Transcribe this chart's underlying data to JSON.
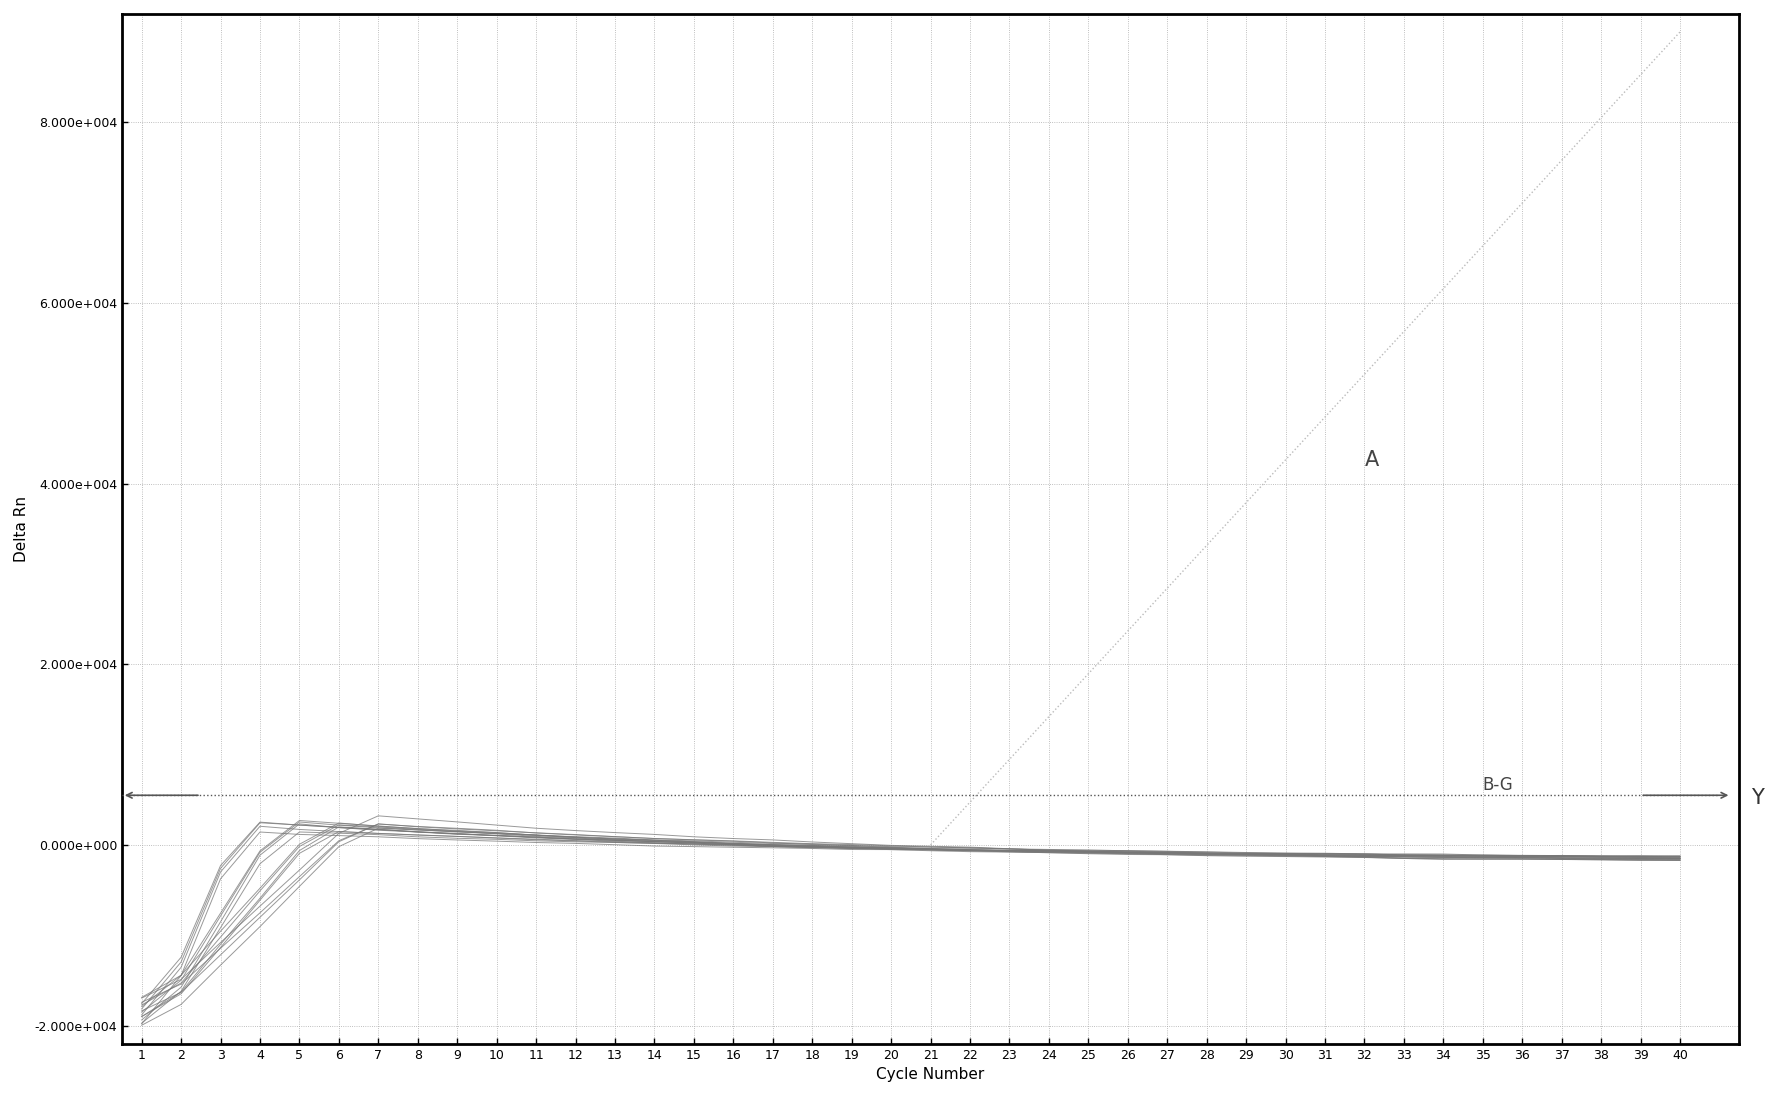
{
  "xlabel": "Cycle Number",
  "ylabel": "Delta Rn",
  "ylim": [
    -22000,
    92000
  ],
  "yticks": [
    -20000,
    0,
    20000,
    40000,
    60000,
    80000
  ],
  "ytick_labels": [
    "-2.000e+004",
    "0.000e+000",
    "2.000e+004",
    "4.000e+004",
    "6.000e+004",
    "8.000e+004"
  ],
  "xlim": [
    0.5,
    41.5
  ],
  "xticks": [
    1,
    2,
    3,
    4,
    5,
    6,
    7,
    8,
    9,
    10,
    11,
    12,
    13,
    14,
    15,
    16,
    17,
    18,
    19,
    20,
    21,
    22,
    23,
    24,
    25,
    26,
    27,
    28,
    29,
    30,
    31,
    32,
    33,
    34,
    35,
    36,
    37,
    38,
    39,
    40
  ],
  "threshold_y": 5500,
  "label_A": "A",
  "label_BG": "B-G",
  "label_Y": "Y",
  "line_color": "#555555",
  "threshold_color": "#555555",
  "diagonal_color": "#bbbbbb",
  "bg_color": "#ffffff",
  "n_bg_curves": 16,
  "xlabel_fontsize": 11,
  "ylabel_fontsize": 11,
  "tick_fontsize": 9
}
